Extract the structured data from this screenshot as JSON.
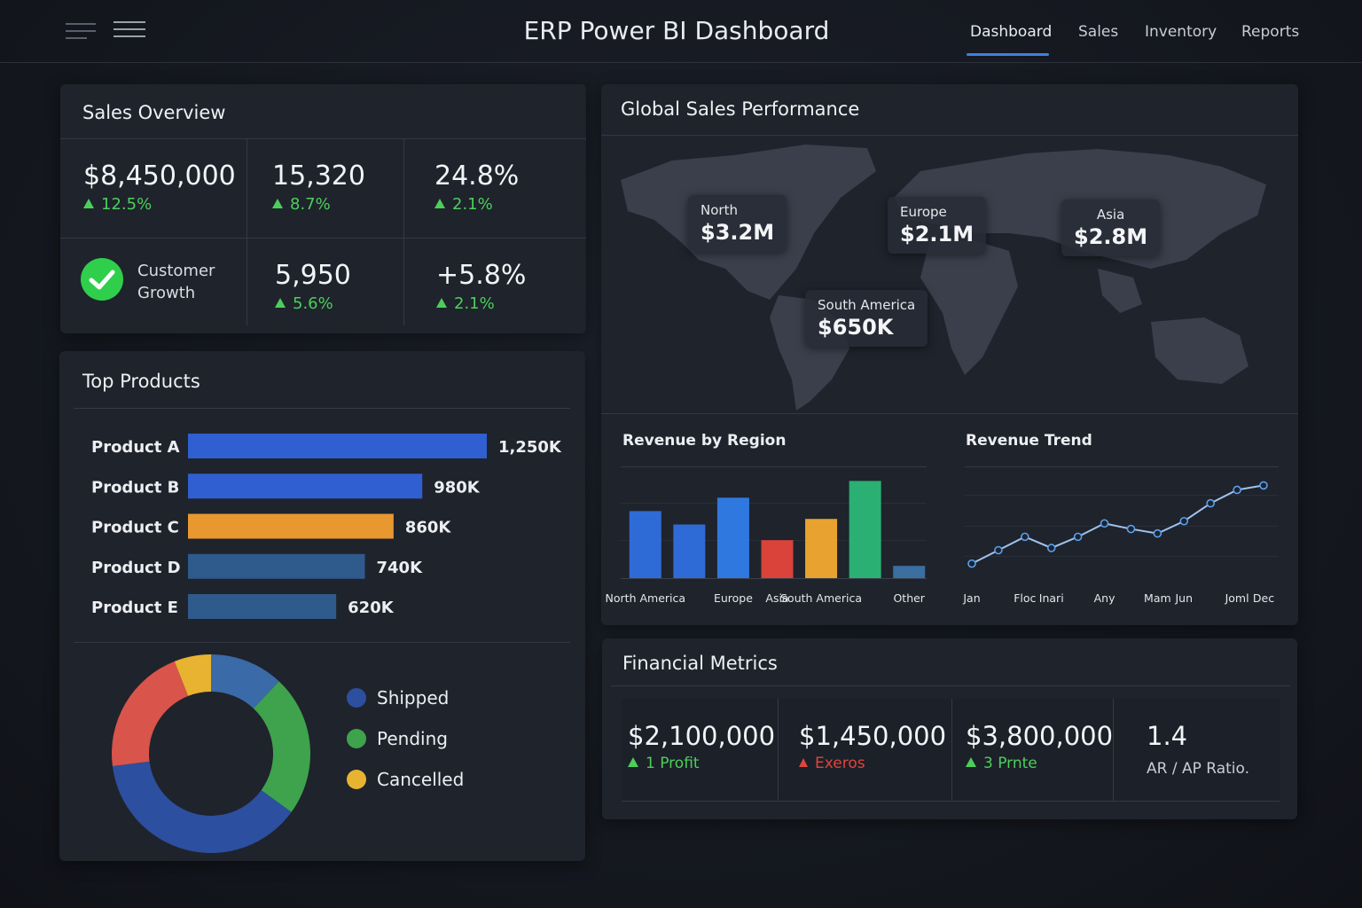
{
  "header": {
    "title": "ERP Power BI Dashboard",
    "nav": [
      "Dashboard",
      "Sales",
      "Inventory",
      "Reports"
    ]
  },
  "sales_overview": {
    "title": "Sales Overview",
    "kpis": [
      {
        "value": "$8,450,000",
        "change": "12.5%"
      },
      {
        "value": "15,320",
        "change": "8.7%"
      },
      {
        "value": "24.8%",
        "change": "2.1%"
      },
      {
        "label": "Customer Growth"
      },
      {
        "value": "5,950",
        "change": "5.6%"
      },
      {
        "value": "+5.8%",
        "change": "2.1%"
      }
    ]
  },
  "global_sales": {
    "title": "Global Sales Performance",
    "regions": [
      {
        "name": "North",
        "value": "$3.2M"
      },
      {
        "name": "Europe",
        "value": "$2.1M"
      },
      {
        "name": "Asia",
        "value": "$2.8M"
      },
      {
        "name": "South America",
        "value": "$650K"
      }
    ]
  },
  "financial_metrics": {
    "title": "Financial Metrics",
    "items": [
      {
        "value": "$2,100,000",
        "note": "1 Profit",
        "trend": "up"
      },
      {
        "value": "$1,450,000",
        "note": "Exeros",
        "trend": "down"
      },
      {
        "value": "$3,800,000",
        "note": "3 Prnte",
        "trend": "up"
      },
      {
        "value": "1.4",
        "note": "AR / AP Ratio."
      }
    ]
  },
  "chart_data": [
    {
      "type": "hbar",
      "title": "Top Products",
      "categories": [
        "Product A",
        "Product B",
        "Product C",
        "Product D",
        "Product E"
      ],
      "values": [
        1250,
        980,
        860,
        740,
        620
      ],
      "value_labels": [
        "1,250K",
        "980K",
        "860K",
        "740K",
        "620K"
      ],
      "colors": [
        "#2f5fd0",
        "#2f5fd0",
        "#e8982f",
        "#2f5a8c",
        "#2f5a8c"
      ]
    },
    {
      "type": "bar",
      "title": "Revenue by Region",
      "categories": [
        "North America",
        null,
        "Europe",
        "Asia",
        "South America",
        null,
        "Other"
      ],
      "values": [
        60,
        48,
        72,
        34,
        53,
        87,
        11
      ],
      "colors": [
        "#2f6bd6",
        "#2f6bd6",
        "#2f78e0",
        "#d9433a",
        "#e8a230",
        "#2bb074",
        "#3a6fa0"
      ],
      "ylim": [
        0,
        100
      ]
    },
    {
      "type": "line",
      "title": "Revenue Trend",
      "categories": [
        "Jan",
        null,
        "Floc",
        "Inari",
        null,
        "Any",
        null,
        "Mam",
        "Jun",
        null,
        "Joml",
        "Dec"
      ],
      "values": [
        13,
        25,
        37,
        27,
        37,
        49,
        44,
        40,
        51,
        67,
        79,
        83
      ],
      "color": "#9fc4ee",
      "ylim": [
        0,
        100
      ]
    },
    {
      "type": "donut",
      "categories": [
        null,
        "Pending",
        "Shipped",
        null,
        "Cancelled"
      ],
      "values": [
        12,
        23,
        38,
        21,
        6
      ],
      "colors": [
        "#3a6aa8",
        "#3ea34c",
        "#2c4f9f",
        "#d9544a",
        "#e8b331"
      ]
    }
  ]
}
